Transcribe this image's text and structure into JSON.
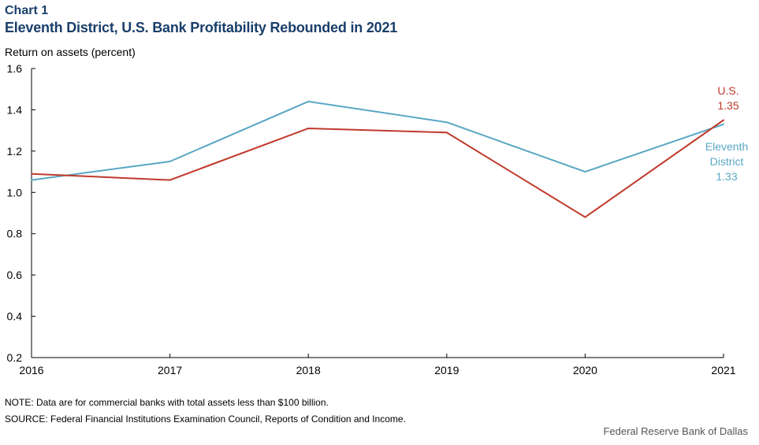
{
  "header": {
    "chart_label": "Chart 1",
    "title": "Eleventh District, U.S. Bank Profitability Rebounded in 2021"
  },
  "footer": {
    "note": "NOTE: Data are for commercial banks with total assets less than $100 billion.",
    "source": "SOURCE: Federal Financial Institutions Examination Council, Reports of Condition and Income.",
    "credit": "Federal Reserve Bank of Dallas"
  },
  "colors": {
    "us": "#c0392b",
    "eleventh": "#5aa7c4",
    "axis": "#000000",
    "title": "#1a3f6b"
  },
  "chart_data": {
    "type": "line",
    "title": "Eleventh District, U.S. Bank Profitability Rebounded in 2021",
    "ylabel": "Return on assets (percent)",
    "xlabel": "",
    "x": [
      2016,
      2017,
      2018,
      2019,
      2020,
      2021
    ],
    "ylim": [
      0.2,
      1.6
    ],
    "yticks": [
      0.2,
      0.4,
      0.6,
      0.8,
      1.0,
      1.2,
      1.4,
      1.6
    ],
    "ytick_labels": [
      "0.2",
      "0.4",
      "0.6",
      "0.8",
      "1.0",
      "1.2",
      "1.4",
      "1.6"
    ],
    "xtick_labels": [
      "2016",
      "2017",
      "2018",
      "2019",
      "2020",
      "2021"
    ],
    "grid": false,
    "series": [
      {
        "key": "eleventh",
        "name": "Eleventh District",
        "label_lines": [
          "Eleventh",
          "District",
          "1.33"
        ],
        "values": [
          1.06,
          1.15,
          1.44,
          1.34,
          1.1,
          1.33
        ]
      },
      {
        "key": "us",
        "name": "U.S.",
        "label_lines": [
          "U.S.",
          "1.35"
        ],
        "values": [
          1.09,
          1.06,
          1.31,
          1.29,
          0.88,
          1.35
        ]
      }
    ]
  }
}
